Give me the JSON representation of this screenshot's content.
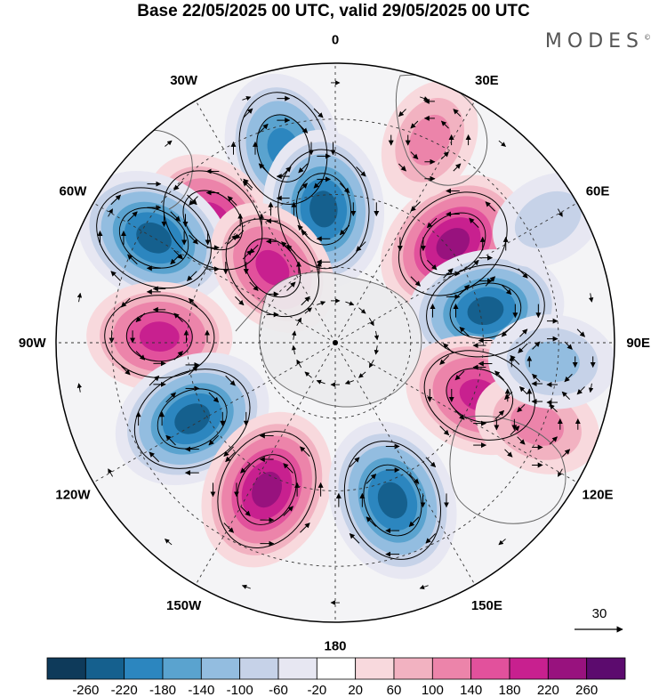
{
  "title": "Base 22/05/2025 00 UTC, valid 29/05/2025 00 UTC",
  "brand": "MODES",
  "brand_mark": "©",
  "longitude_labels": [
    {
      "lon": 0,
      "label": "0"
    },
    {
      "lon": 30,
      "label": "30E"
    },
    {
      "lon": 60,
      "label": "60E"
    },
    {
      "lon": 90,
      "label": "90E"
    },
    {
      "lon": 120,
      "label": "120E"
    },
    {
      "lon": 150,
      "label": "150E"
    },
    {
      "lon": 180,
      "label": "180"
    },
    {
      "lon": -150,
      "label": "150W"
    },
    {
      "lon": -120,
      "label": "120W"
    },
    {
      "lon": -90,
      "label": "90W"
    },
    {
      "lon": -60,
      "label": "60W"
    },
    {
      "lon": -30,
      "label": "30W"
    }
  ],
  "reference_vector": {
    "label": "30"
  },
  "colorbar": {
    "ticks": [
      "-260",
      "-220",
      "-180",
      "-140",
      "-100",
      "-60",
      "-20",
      "20",
      "60",
      "100",
      "140",
      "180",
      "220",
      "260"
    ],
    "colors": [
      "#0e3a5a",
      "#15608e",
      "#2c86bf",
      "#5aa3cf",
      "#93bde0",
      "#c6d2e8",
      "#e7e7f2",
      "#ffffff",
      "#f8d9dd",
      "#f2b2c1",
      "#ec84aa",
      "#e2519c",
      "#c8208f",
      "#98127e",
      "#5c0b6e"
    ]
  },
  "anomalies": [
    {
      "lon": -15,
      "r": 0.72,
      "value": -210
    },
    {
      "lon": 50,
      "r": 0.55,
      "value": 240
    },
    {
      "lon": 25,
      "r": 0.8,
      "value": 100
    },
    {
      "lon": -45,
      "r": 0.62,
      "value": 200
    },
    {
      "lon": -5,
      "r": 0.48,
      "value": -240
    },
    {
      "lon": -60,
      "r": 0.75,
      "value": -250
    },
    {
      "lon": -40,
      "r": 0.35,
      "value": 180
    },
    {
      "lon": -88,
      "r": 0.63,
      "value": 190
    },
    {
      "lon": 78,
      "r": 0.55,
      "value": -240
    },
    {
      "lon": -118,
      "r": 0.58,
      "value": -250
    },
    {
      "lon": -155,
      "r": 0.58,
      "value": 250
    },
    {
      "lon": 160,
      "r": 0.6,
      "value": -250
    },
    {
      "lon": 110,
      "r": 0.55,
      "value": 210
    },
    {
      "lon": 112,
      "r": 0.78,
      "value": 120
    },
    {
      "lon": 95,
      "r": 0.78,
      "value": -120
    },
    {
      "lon": 60,
      "r": 0.88,
      "value": -80
    }
  ]
}
